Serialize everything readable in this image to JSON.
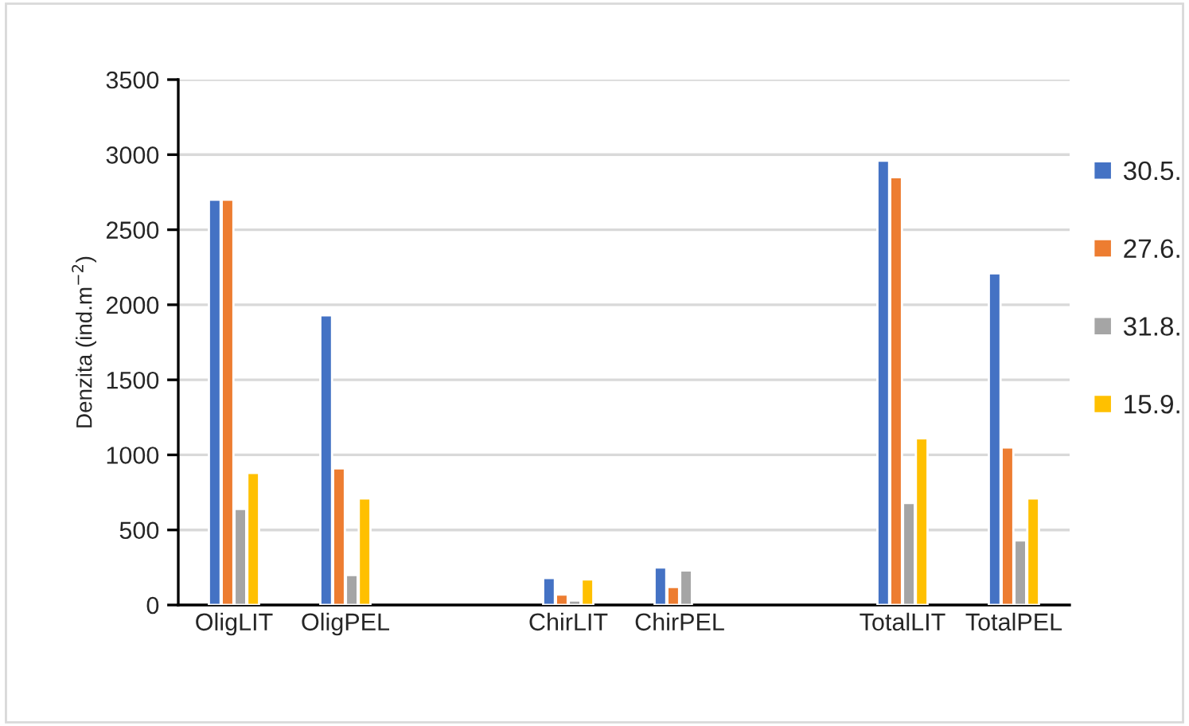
{
  "chart_data": {
    "type": "bar",
    "ylabel": "Denzita (ind.m$^{−2}$)",
    "categories": [
      "OligLIT",
      "OligPEL",
      null,
      "ChirLIT",
      "ChirPEL",
      null,
      "TotalLIT",
      "TotalPEL"
    ],
    "series": [
      {
        "name": "30.5.",
        "color": "#4472c4",
        "values": [
          2700,
          1930,
          null,
          180,
          250,
          null,
          2960,
          2210
        ]
      },
      {
        "name": "27.6.",
        "color": "#ed7d31",
        "values": [
          2700,
          910,
          null,
          70,
          120,
          null,
          2850,
          1050
        ]
      },
      {
        "name": "31.8.",
        "color": "#a5a5a5",
        "values": [
          640,
          200,
          null,
          30,
          230,
          null,
          680,
          430
        ]
      },
      {
        "name": "15.9.",
        "color": "#ffc000",
        "values": [
          880,
          710,
          null,
          170,
          null,
          null,
          1110,
          710
        ]
      }
    ],
    "ylim": [
      0,
      3500
    ],
    "yticks": [
      0,
      500,
      1000,
      1500,
      2000,
      2500,
      3000,
      3500
    ],
    "grid": "y",
    "legend": "right"
  }
}
